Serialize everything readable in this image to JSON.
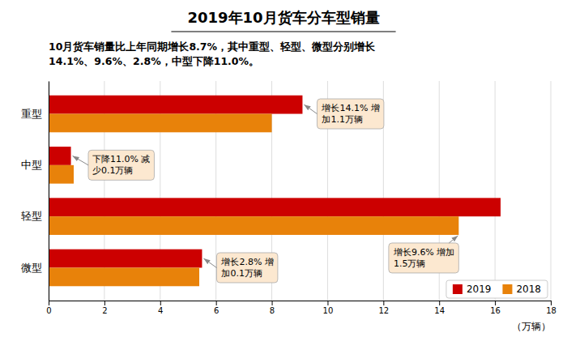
{
  "chart_data": {
    "type": "bar",
    "orientation": "horizontal",
    "title": "2019年10月货车分车型销量",
    "subtitle": "10月货车销量比上年同期增长8.7%，其中重型、轻型、微型分别增长\n14.1%、9.6%、2.8%，中型下降11.0%。",
    "categories": [
      "重型",
      "中型",
      "轻型",
      "微型"
    ],
    "series": [
      {
        "name": "2019",
        "color": "#cc0000",
        "values": [
          9.1,
          0.8,
          16.2,
          5.5
        ]
      },
      {
        "name": "2018",
        "color": "#e8820a",
        "values": [
          8.0,
          0.9,
          14.7,
          5.4
        ]
      }
    ],
    "xlim": [
      0,
      18
    ],
    "xticks": [
      0,
      2,
      4,
      6,
      8,
      10,
      12,
      14,
      16,
      18
    ],
    "xlabel": "（万辆）",
    "grid": true,
    "legend": "lower right",
    "annotations": [
      {
        "text": "增长14.1% 增\n加1.1万辆",
        "category": "重型",
        "series": "2019"
      },
      {
        "text": "下降11.0% 减\n少0.1万辆",
        "category": "中型",
        "series": "2019"
      },
      {
        "text": "增长9.6% 增加\n1.5万辆",
        "category": "轻型",
        "series": "2018"
      },
      {
        "text": "增长2.8% 增\n加0.1万辆",
        "category": "微型",
        "series": "2019"
      }
    ]
  }
}
